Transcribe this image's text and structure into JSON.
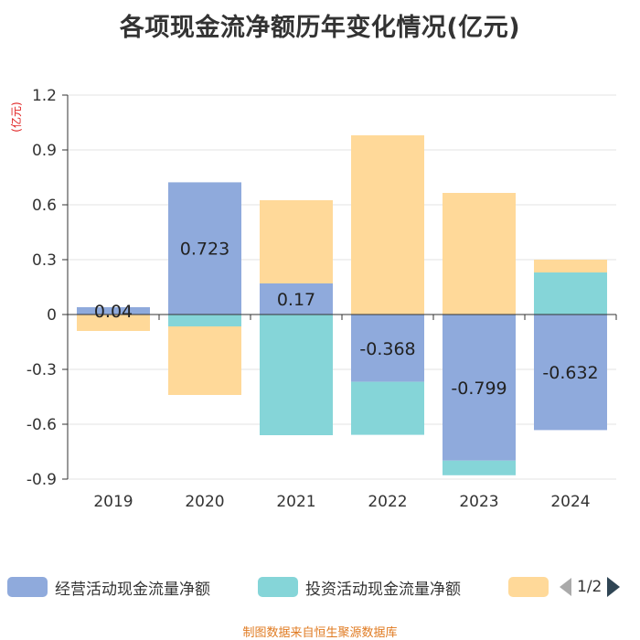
{
  "title": "各项现金流净额历年变化情况(亿元)",
  "source": "制图数据来自恒生聚源数据库",
  "legend": {
    "items": [
      {
        "name": "经营活动现金流量净额",
        "color": "#8faadc"
      },
      {
        "name": "投资活动现金流量净额",
        "color": "#85d5d8"
      },
      {
        "name": "",
        "color": "#ffd999"
      }
    ],
    "page": "1/2"
  },
  "chart_data": {
    "type": "bar",
    "stacked": true,
    "title": "各项现金流净额历年变化情况(亿元)",
    "ylabel": "(亿元)",
    "ylim": [
      -0.9,
      1.2
    ],
    "yticks": [
      -0.9,
      -0.6,
      -0.3,
      0,
      0.3,
      0.6,
      0.9,
      1.2
    ],
    "ytick_labels": [
      "-0.9",
      "-0.6",
      "-0.3",
      "0",
      "0.3",
      "0.6",
      "0.9",
      "1.2"
    ],
    "categories": [
      "2019",
      "2020",
      "2021",
      "2022",
      "2023",
      "2024"
    ],
    "series": [
      {
        "name": "经营活动现金流量净额",
        "color": "#8faadc",
        "values": [
          0.04,
          0.723,
          0.17,
          -0.368,
          -0.799,
          -0.632
        ],
        "labels": [
          "0.04",
          "0.723",
          "0.17",
          "-0.368",
          "-0.799",
          "-0.632"
        ]
      },
      {
        "name": "投资活动现金流量净额",
        "color": "#85d5d8",
        "values": [
          0.0,
          -0.065,
          -0.66,
          -0.29,
          -0.08,
          0.23
        ]
      },
      {
        "name": "",
        "color": "#ffd999",
        "values": [
          -0.09,
          -0.375,
          0.455,
          0.98,
          0.665,
          0.07
        ]
      }
    ]
  }
}
